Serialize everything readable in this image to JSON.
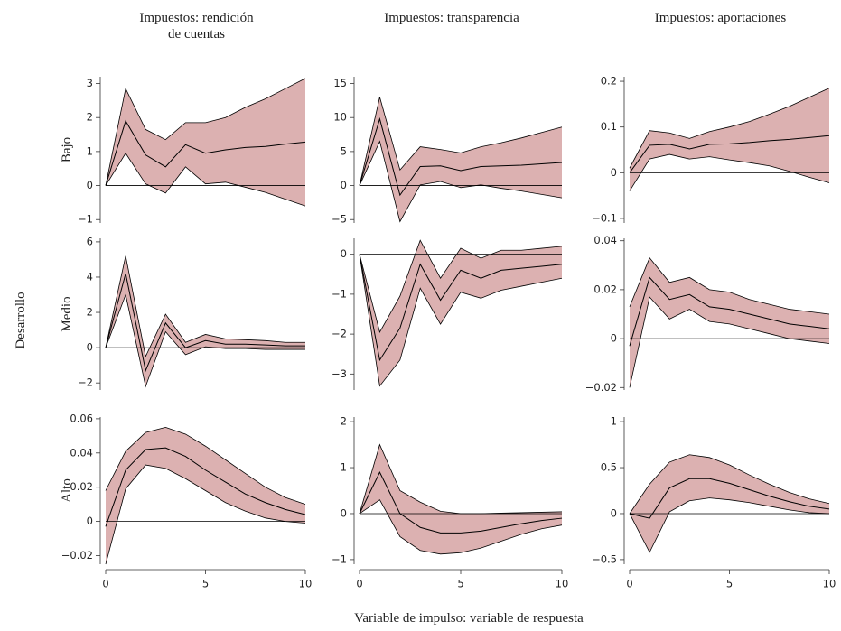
{
  "column_titles": [
    [
      "Impuestos: rendición",
      "de cuentas"
    ],
    [
      "Impuestos: transparencia"
    ],
    [
      "Impuestos: aportaciones"
    ]
  ],
  "row_labels": [
    "Bajo",
    "Medio",
    "Alto"
  ],
  "y_axis_title": "Desarrollo",
  "x_axis_title": "Variable de impulso: variable de respuesta",
  "chart_data": [
    {
      "type": "line",
      "x": [
        0,
        1,
        2,
        3,
        4,
        5,
        6,
        7,
        8,
        9,
        10
      ],
      "values": [
        0,
        1.9,
        0.9,
        0.55,
        1.2,
        0.95,
        1.05,
        1.12,
        1.15,
        1.22,
        1.28
      ],
      "upper": [
        0,
        2.85,
        1.65,
        1.35,
        1.85,
        1.85,
        2.0,
        2.3,
        2.55,
        2.85,
        3.15
      ],
      "lower": [
        0,
        0.95,
        0.05,
        -0.22,
        0.55,
        0.05,
        0.1,
        -0.05,
        -0.2,
        -0.4,
        -0.6
      ],
      "xlim": [
        0,
        10
      ],
      "ylim": [
        -1.1,
        3.2
      ],
      "yticks": [
        {
          "value": -1,
          "label": "−1"
        },
        0,
        1,
        2,
        3
      ],
      "hline": 0,
      "color": "#000000",
      "band_color": "#dcb1b1"
    },
    {
      "type": "line",
      "x": [
        0,
        1,
        2,
        3,
        4,
        5,
        6,
        7,
        8,
        9,
        10
      ],
      "values": [
        0,
        9.8,
        -1.4,
        2.8,
        2.9,
        2.2,
        2.8,
        2.9,
        3.0,
        3.2,
        3.4
      ],
      "upper": [
        0,
        13,
        2.3,
        5.7,
        5.3,
        4.8,
        5.7,
        6.3,
        7.0,
        7.8,
        8.6
      ],
      "lower": [
        0,
        6.5,
        -5.3,
        0.1,
        0.6,
        -0.3,
        0.1,
        -0.4,
        -0.8,
        -1.3,
        -1.8
      ],
      "xlim": [
        0,
        10
      ],
      "ylim": [
        -5.5,
        16
      ],
      "yticks": [
        {
          "value": -5,
          "label": "−5"
        },
        0,
        5,
        10,
        15
      ],
      "hline": 0,
      "color": "#000000",
      "band_color": "#dcb1b1"
    },
    {
      "type": "line",
      "x": [
        0,
        1,
        2,
        3,
        4,
        5,
        6,
        7,
        8,
        9,
        10
      ],
      "values": [
        0,
        0.06,
        0.062,
        0.052,
        0.062,
        0.063,
        0.066,
        0.07,
        0.073,
        0.077,
        0.081
      ],
      "upper": [
        0.01,
        0.092,
        0.087,
        0.075,
        0.09,
        0.1,
        0.112,
        0.128,
        0.145,
        0.165,
        0.185
      ],
      "lower": [
        -0.04,
        0.03,
        0.04,
        0.03,
        0.035,
        0.028,
        0.022,
        0.015,
        0.003,
        -0.01,
        -0.022
      ],
      "xlim": [
        0,
        10
      ],
      "ylim": [
        -0.11,
        0.21
      ],
      "yticks": [
        {
          "value": -0.1,
          "label": "−0.1"
        },
        0,
        0.1,
        0.2
      ],
      "hline": 0,
      "color": "#000000",
      "band_color": "#dcb1b1"
    },
    {
      "type": "line",
      "x": [
        0,
        1,
        2,
        3,
        4,
        5,
        6,
        7,
        8,
        9,
        10
      ],
      "values": [
        0,
        4.2,
        -1.3,
        1.4,
        0,
        0.4,
        0.2,
        0.2,
        0.15,
        0.1,
        0.1
      ],
      "upper": [
        0,
        5.2,
        -0.5,
        1.9,
        0.3,
        0.75,
        0.5,
        0.45,
        0.4,
        0.3,
        0.3
      ],
      "lower": [
        0,
        3.0,
        -2.2,
        0.9,
        -0.4,
        0.05,
        -0.05,
        -0.05,
        -0.1,
        -0.1,
        -0.1
      ],
      "xlim": [
        0,
        10
      ],
      "ylim": [
        -2.4,
        6.2
      ],
      "yticks": [
        {
          "value": -2,
          "label": "−2"
        },
        0,
        2,
        4,
        6
      ],
      "hline": 0,
      "color": "#000000",
      "band_color": "#dcb1b1"
    },
    {
      "type": "line",
      "x": [
        0,
        1,
        2,
        3,
        4,
        5,
        6,
        7,
        8,
        9,
        10
      ],
      "values": [
        0,
        -2.65,
        -1.85,
        -0.25,
        -1.15,
        -0.4,
        -0.6,
        -0.4,
        -0.35,
        -0.3,
        -0.25
      ],
      "upper": [
        0,
        -1.95,
        -1.05,
        0.35,
        -0.6,
        0.15,
        -0.1,
        0.1,
        0.1,
        0.15,
        0.2
      ],
      "lower": [
        0,
        -3.3,
        -2.65,
        -0.85,
        -1.75,
        -0.95,
        -1.1,
        -0.9,
        -0.8,
        -0.7,
        -0.6
      ],
      "xlim": [
        0,
        10
      ],
      "ylim": [
        -3.4,
        0.4
      ],
      "yticks": [
        {
          "value": -3,
          "label": "−3"
        },
        {
          "value": -2,
          "label": "−2"
        },
        {
          "value": -1,
          "label": "−1"
        },
        0
      ],
      "hline": 0,
      "color": "#000000",
      "band_color": "#dcb1b1"
    },
    {
      "type": "line",
      "x": [
        0,
        1,
        2,
        3,
        4,
        5,
        6,
        7,
        8,
        9,
        10
      ],
      "values": [
        -0.003,
        0.025,
        0.016,
        0.018,
        0.013,
        0.012,
        0.01,
        0.008,
        0.006,
        0.005,
        0.004
      ],
      "upper": [
        0.013,
        0.033,
        0.023,
        0.025,
        0.02,
        0.019,
        0.016,
        0.014,
        0.012,
        0.011,
        0.01
      ],
      "lower": [
        -0.02,
        0.017,
        0.008,
        0.012,
        0.007,
        0.006,
        0.004,
        0.002,
        0.0,
        -0.001,
        -0.002
      ],
      "xlim": [
        0,
        10
      ],
      "ylim": [
        -0.021,
        0.041
      ],
      "yticks": [
        {
          "value": -0.02,
          "label": "−0.02"
        },
        0,
        0.02,
        0.04
      ],
      "hline": 0,
      "color": "#000000",
      "band_color": "#dcb1b1"
    },
    {
      "type": "line",
      "x": [
        0,
        1,
        2,
        3,
        4,
        5,
        6,
        7,
        8,
        9,
        10
      ],
      "values": [
        -0.003,
        0.03,
        0.042,
        0.043,
        0.038,
        0.03,
        0.023,
        0.016,
        0.011,
        0.007,
        0.004
      ],
      "upper": [
        0.018,
        0.041,
        0.052,
        0.055,
        0.051,
        0.044,
        0.036,
        0.028,
        0.02,
        0.014,
        0.01
      ],
      "lower": [
        -0.025,
        0.019,
        0.033,
        0.031,
        0.025,
        0.018,
        0.011,
        0.006,
        0.002,
        0,
        -0.001
      ],
      "xlim": [
        0,
        10
      ],
      "ylim": [
        -0.025,
        0.061
      ],
      "xticks": [
        0,
        5,
        10
      ],
      "yticks": [
        {
          "value": -0.02,
          "label": "−0.02"
        },
        0,
        0.02,
        0.04,
        0.06
      ],
      "hline": 0,
      "color": "#000000",
      "band_color": "#dcb1b1"
    },
    {
      "type": "line",
      "x": [
        0,
        1,
        2,
        3,
        4,
        5,
        6,
        7,
        8,
        9,
        10
      ],
      "values": [
        0,
        0.9,
        0.0,
        -0.3,
        -0.42,
        -0.42,
        -0.38,
        -0.3,
        -0.22,
        -0.15,
        -0.1
      ],
      "upper": [
        0,
        1.5,
        0.5,
        0.25,
        0.05,
        0,
        0,
        0.01,
        0.02,
        0.03,
        0.04
      ],
      "lower": [
        0,
        0.3,
        -0.5,
        -0.8,
        -0.88,
        -0.85,
        -0.75,
        -0.6,
        -0.45,
        -0.33,
        -0.25
      ],
      "xlim": [
        0,
        10
      ],
      "ylim": [
        -1.1,
        2.1
      ],
      "xticks": [
        0,
        5,
        10
      ],
      "yticks": [
        {
          "value": -1,
          "label": "−1"
        },
        0,
        1,
        2
      ],
      "hline": 0,
      "color": "#000000",
      "band_color": "#dcb1b1"
    },
    {
      "type": "line",
      "x": [
        0,
        1,
        2,
        3,
        4,
        5,
        6,
        7,
        8,
        9,
        10
      ],
      "values": [
        0,
        -0.05,
        0.28,
        0.38,
        0.38,
        0.33,
        0.26,
        0.19,
        0.13,
        0.08,
        0.05
      ],
      "upper": [
        0,
        0.32,
        0.56,
        0.64,
        0.61,
        0.53,
        0.42,
        0.32,
        0.23,
        0.16,
        0.11
      ],
      "lower": [
        0,
        -0.42,
        0.02,
        0.14,
        0.17,
        0.15,
        0.12,
        0.08,
        0.04,
        0.01,
        0
      ],
      "xlim": [
        0,
        10
      ],
      "ylim": [
        -0.55,
        1.05
      ],
      "xticks": [
        0,
        5,
        10
      ],
      "yticks": [
        {
          "value": -0.5,
          "label": "−0.5"
        },
        0,
        0.5,
        1
      ],
      "hline": 0,
      "color": "#000000",
      "band_color": "#dcb1b1"
    }
  ]
}
